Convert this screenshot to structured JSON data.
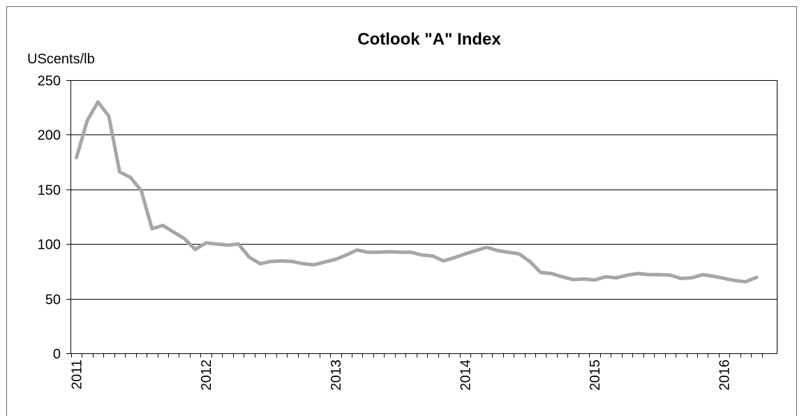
{
  "chart_data": {
    "type": "line",
    "title": "Cotlook \"A\" Index",
    "ylabel": "UScents/lb",
    "xlabel": "",
    "ylim": [
      0,
      250
    ],
    "yticks": [
      "0",
      "50",
      "100",
      "150",
      "200",
      "250"
    ],
    "xtick_labels": [
      "2011",
      "2012",
      "2013",
      "2014",
      "2015",
      "2016"
    ],
    "grid": true,
    "colors": {
      "series": "#a6a6a6",
      "grid": "#000000",
      "axis": "#000000"
    },
    "series": [
      {
        "name": "",
        "x": [
          "2011-01",
          "2011-02",
          "2011-03",
          "2011-04",
          "2011-05",
          "2011-06",
          "2011-07",
          "2011-08",
          "2011-09",
          "2011-10",
          "2011-11",
          "2011-12",
          "2012-01",
          "2012-02",
          "2012-03",
          "2012-04",
          "2012-05",
          "2012-06",
          "2012-07",
          "2012-08",
          "2012-09",
          "2012-10",
          "2012-11",
          "2012-12",
          "2013-01",
          "2013-02",
          "2013-03",
          "2013-04",
          "2013-05",
          "2013-06",
          "2013-07",
          "2013-08",
          "2013-09",
          "2013-10",
          "2013-11",
          "2013-12",
          "2014-01",
          "2014-02",
          "2014-03",
          "2014-04",
          "2014-05",
          "2014-06",
          "2014-07",
          "2014-08",
          "2014-09",
          "2014-10",
          "2014-11",
          "2014-12",
          "2015-01",
          "2015-02",
          "2015-03",
          "2015-04",
          "2015-05",
          "2015-06",
          "2015-07",
          "2015-08",
          "2015-09",
          "2015-10",
          "2015-11",
          "2015-12",
          "2016-01",
          "2016-02",
          "2016-03",
          "2016-04"
        ],
        "values": [
          179,
          213,
          230,
          217,
          166,
          161,
          149,
          114,
          117,
          111,
          105,
          95,
          101,
          100,
          99,
          100,
          88,
          82,
          84,
          84.5,
          84,
          82,
          81,
          83.5,
          86,
          90,
          94.5,
          92.5,
          92.5,
          93,
          92.5,
          92.5,
          90,
          89,
          84.5,
          87.5,
          91,
          94,
          97,
          94,
          92.5,
          91,
          84,
          74,
          73,
          70,
          67.5,
          68,
          67,
          70,
          69,
          71.5,
          73,
          72,
          72,
          71.5,
          68.5,
          69,
          72,
          70.5,
          68.5,
          66.5,
          65.5,
          69.5
        ]
      }
    ]
  }
}
